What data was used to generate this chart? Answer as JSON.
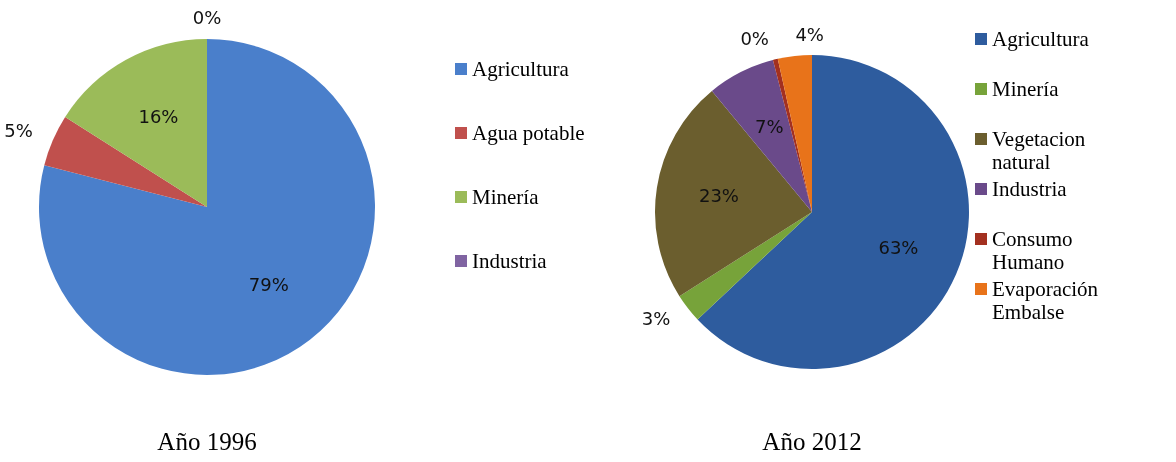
{
  "chart_data": [
    {
      "type": "pie",
      "title": "Año 1996",
      "categories": [
        "Agricultura",
        "Agua potable",
        "Minería",
        "Industria"
      ],
      "values": [
        79,
        5,
        16,
        0
      ],
      "colors": [
        "#4a7fcb",
        "#c0504d",
        "#9bbb59",
        "#8064a2"
      ],
      "value_labels": [
        "79%",
        "5%",
        "16%",
        "0%"
      ],
      "legend": "right"
    },
    {
      "type": "pie",
      "title": "Año 2012",
      "categories": [
        "Agricultura",
        "Minería",
        "Vegetacion natural",
        "Industria",
        "Consumo Humano",
        "Evaporación Embalse"
      ],
      "values": [
        63,
        3,
        23,
        7,
        0.5,
        3.5
      ],
      "colors": [
        "#2e5c9e",
        "#77a33a",
        "#6b5e2e",
        "#6a4a8a",
        "#a33020",
        "#e8731a"
      ],
      "value_labels": [
        "63%",
        "3%",
        "23%",
        "7%",
        "0%",
        "4%"
      ],
      "legend": "right"
    }
  ]
}
